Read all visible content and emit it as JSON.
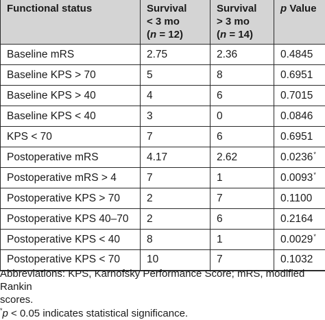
{
  "table": {
    "header": {
      "col1": "Functional status",
      "col2_line1": "Survival",
      "col2_line2": "< 3 mo",
      "col2_n_italic": "n",
      "col2_n_rest": " = 12)",
      "col3_line1": "Survival",
      "col3_line2": "> 3 mo",
      "col3_n_italic": "n",
      "col3_n_rest": " = 14)",
      "col4_italic": "p",
      "col4_rest": " Value"
    },
    "rows": [
      {
        "status": "Baseline mRS",
        "lt3": "2.75",
        "gt3": "2.36",
        "p": "0.4845",
        "sig": ""
      },
      {
        "status": "Baseline KPS > 70",
        "lt3": "5",
        "gt3": "8",
        "p": "0.6951",
        "sig": ""
      },
      {
        "status": "Baseline KPS > 40",
        "lt3": "4",
        "gt3": "6",
        "p": "0.7015",
        "sig": ""
      },
      {
        "status": "Baseline KPS < 40",
        "lt3": "3",
        "gt3": "0",
        "p": "0.0846",
        "sig": ""
      },
      {
        "status": "KPS < 70",
        "lt3": "7",
        "gt3": "6",
        "p": "0.6951",
        "sig": ""
      },
      {
        "status": "Postoperative mRS",
        "lt3": "4.17",
        "gt3": "2.62",
        "p": "0.0236",
        "sig": "*"
      },
      {
        "status": "Postoperative mRS > 4",
        "lt3": "7",
        "gt3": "1",
        "p": "0.0093",
        "sig": "*"
      },
      {
        "status": "Postoperative KPS > 70",
        "lt3": "2",
        "gt3": "7",
        "p": "0.1100",
        "sig": ""
      },
      {
        "status": "Postoperative KPS 40–70",
        "lt3": "2",
        "gt3": "6",
        "p": "0.2164",
        "sig": ""
      },
      {
        "status": "Postoperative KPS < 40",
        "lt3": "8",
        "gt3": "1",
        "p": "0.0029",
        "sig": "*"
      },
      {
        "status": "Postoperative KPS < 70",
        "lt3": "10",
        "gt3": "7",
        "p": "0.1032",
        "sig": ""
      }
    ]
  },
  "footnotes": {
    "abbreviations_line1": "Abbreviations: KPS, Karnofsky Performance Score; mRS, modified Rankin",
    "abbreviations_line2": "scores.",
    "sig_mark": "*",
    "sig_p_italic": "p",
    "sig_rest": " < 0.05 indicates statistical significance."
  }
}
